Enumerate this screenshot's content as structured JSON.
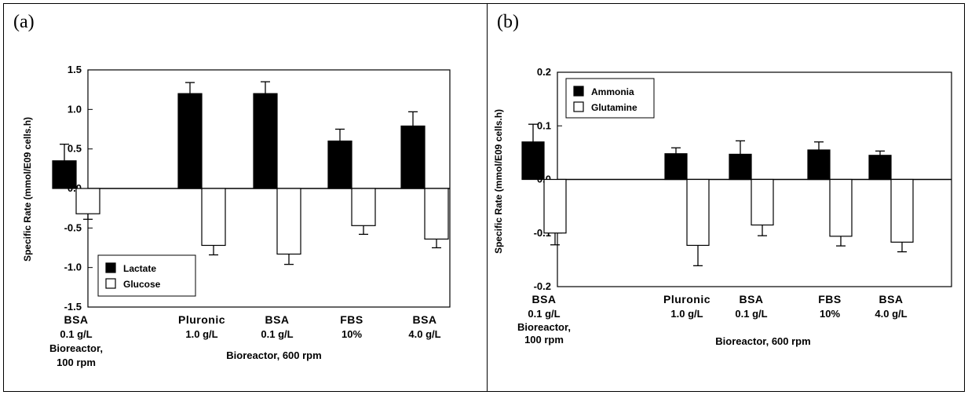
{
  "panels": [
    {
      "label": "(a)"
    },
    {
      "label": "(b)"
    }
  ],
  "chart_data": [
    {
      "type": "bar",
      "ylabel": "Specific Rate (mmol/E09 cells.h)",
      "ylim": [
        -1.5,
        1.5
      ],
      "yticks": [
        "1.5",
        "1.0",
        "0.5",
        "0.0",
        "-0.5",
        "-1.0",
        "-1.5"
      ],
      "ytick_values": [
        1.5,
        1.0,
        0.5,
        0.0,
        -0.5,
        -1.0,
        -1.5
      ],
      "categories": [
        {
          "lines": [
            "BSA",
            "0.1 g/L",
            "Bioreactor,",
            "100 rpm"
          ]
        },
        {
          "lines": [
            "Pluronic",
            "1.0 g/L"
          ]
        },
        {
          "lines": [
            "BSA",
            "0.1 g/L"
          ]
        },
        {
          "lines": [
            "FBS",
            "10%"
          ]
        },
        {
          "lines": [
            "BSA",
            "4.0 g/L"
          ]
        }
      ],
      "group_label": "Bioreactor, 600 rpm",
      "series": [
        {
          "name": "Lactate",
          "fill": "#000000",
          "values": [
            0.35,
            1.2,
            1.2,
            0.6,
            0.79
          ],
          "errors": [
            0.21,
            0.14,
            0.15,
            0.15,
            0.18
          ]
        },
        {
          "name": "Glucose",
          "fill": "#ffffff",
          "values": [
            -0.32,
            -0.72,
            -0.83,
            -0.47,
            -0.64
          ],
          "errors": [
            0.07,
            0.12,
            0.13,
            0.11,
            0.11
          ]
        }
      ],
      "legend_position": "bottom-left",
      "grid": false
    },
    {
      "type": "bar",
      "ylabel": "Specific Rate (mmol/E09 cells.h)",
      "ylim": [
        -0.2,
        0.2
      ],
      "yticks": [
        "0.2",
        "0.1",
        "0.0",
        "-0.1",
        "-0.2"
      ],
      "ytick_values": [
        0.2,
        0.1,
        0.0,
        -0.1,
        -0.2
      ],
      "categories": [
        {
          "lines": [
            "BSA",
            "0.1 g/L",
            "Bioreactor,",
            "100 rpm"
          ]
        },
        {
          "lines": [
            "Pluronic",
            "1.0 g/L"
          ]
        },
        {
          "lines": [
            "BSA",
            "0.1 g/L"
          ]
        },
        {
          "lines": [
            "FBS",
            "10%"
          ]
        },
        {
          "lines": [
            "BSA",
            "4.0 g/L"
          ]
        }
      ],
      "group_label": "Bioreactor, 600 rpm",
      "series": [
        {
          "name": "Ammonia",
          "fill": "#000000",
          "values": [
            0.07,
            0.048,
            0.047,
            0.055,
            0.045
          ],
          "errors": [
            0.033,
            0.011,
            0.025,
            0.015,
            0.008
          ]
        },
        {
          "name": "Glutamine",
          "fill": "#ffffff",
          "values": [
            -0.1,
            -0.123,
            -0.085,
            -0.106,
            -0.117
          ],
          "errors": [
            0.022,
            0.038,
            0.02,
            0.018,
            0.018
          ]
        }
      ],
      "legend_position": "top-left",
      "grid": false
    }
  ]
}
